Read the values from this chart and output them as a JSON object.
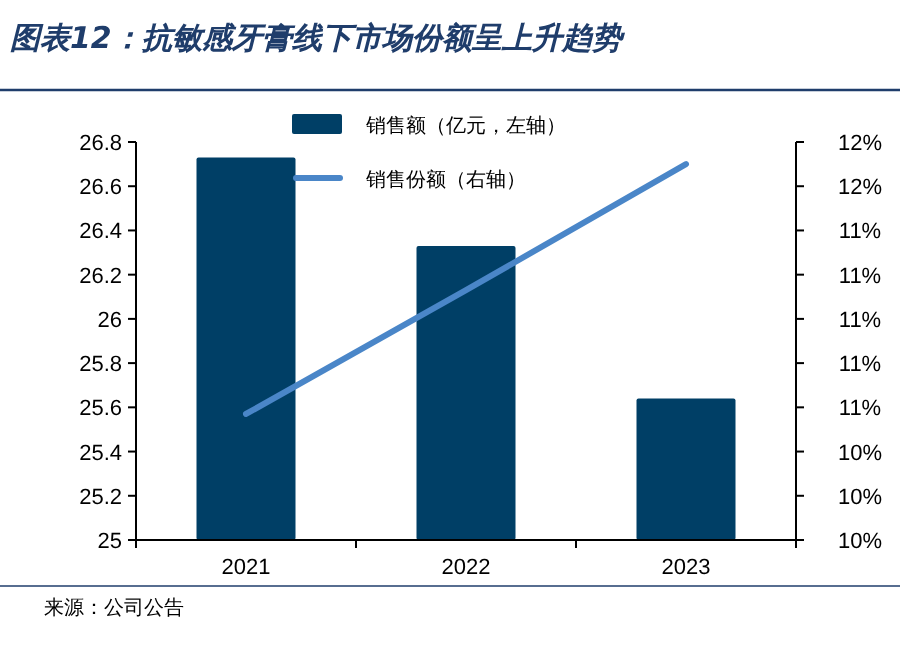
{
  "chart_data": {
    "type": "bar",
    "title": "图表12：抗敏感牙膏线下市场份额呈上升趋势",
    "categories": [
      "2021",
      "2022",
      "2023"
    ],
    "series": [
      {
        "name": "销售额（亿元，左轴）",
        "color": "#003f66",
        "values": [
          26.73,
          26.33,
          25.64
        ]
      },
      {
        "name": "销售份额（右轴）",
        "type": "line",
        "axis": "y2",
        "color": "#4a86c8",
        "values": [
          10.57,
          11.13,
          11.7
        ]
      }
    ],
    "ylim": [
      25,
      26.8
    ],
    "yticks": [
      25,
      25.2,
      25.4,
      25.6,
      25.8,
      26,
      26.2,
      26.4,
      26.6,
      26.8
    ],
    "y2lim": [
      10,
      11.8
    ],
    "y2ticks": [
      {
        "value": 10,
        "label": "10%"
      },
      {
        "value": 10.2,
        "label": "10%"
      },
      {
        "value": 10.4,
        "label": "10%"
      },
      {
        "value": 10.6,
        "label": "11%"
      },
      {
        "value": 10.8,
        "label": "11%"
      },
      {
        "value": 11,
        "label": "11%"
      },
      {
        "value": 11.2,
        "label": "11%"
      },
      {
        "value": 11.4,
        "label": "11%"
      },
      {
        "value": 11.6,
        "label": "12%"
      },
      {
        "value": 11.8,
        "label": "12%"
      }
    ],
    "legend": "top",
    "annotations": [
      "来源：公司公告"
    ]
  }
}
